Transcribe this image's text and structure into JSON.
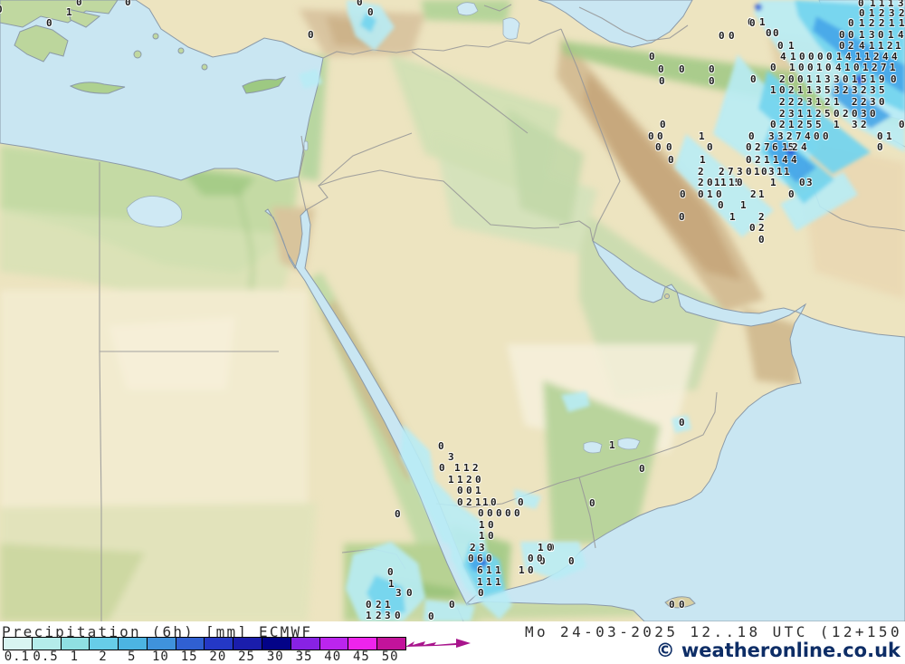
{
  "legend": {
    "title": "Precipitation (6h) [mm] ECMWF",
    "datetime": "Mo 24-03-2025 12..18 UTC (12+150",
    "copyright": "© weatheronline.co.uk",
    "scale": {
      "values": [
        "0.1",
        "0.5",
        "1",
        "2",
        "5",
        "10",
        "15",
        "20",
        "25",
        "30",
        "35",
        "40",
        "45",
        "50"
      ],
      "colors": [
        "#d8f4f1",
        "#b4ecea",
        "#8fe0e2",
        "#67cde8",
        "#4cb4e2",
        "#3f92dc",
        "#3060d2",
        "#2438c6",
        "#1a1dac",
        "#030388",
        "#8822e4",
        "#bb25ee",
        "#ee24ec",
        "#c3139b"
      ],
      "arrow_color": "#a8148c"
    }
  },
  "map": {
    "sea_color": "#c9e6f2",
    "land_color": "#eee6c3",
    "precip_values": [
      [
        88,
        3,
        "0"
      ],
      [
        142,
        3,
        "0"
      ],
      [
        0,
        11,
        "0"
      ],
      [
        77,
        14,
        "1"
      ],
      [
        55,
        26,
        "0"
      ],
      [
        398,
        3,
        "0"
      ],
      [
        410,
        14,
        "0"
      ],
      [
        344,
        39,
        "0"
      ],
      [
        830,
        25,
        "0"
      ],
      [
        843,
        25,
        "1"
      ],
      [
        850,
        37,
        "0"
      ],
      [
        858,
        37,
        "0"
      ],
      [
        798,
        40,
        "0"
      ],
      [
        809,
        40,
        "0"
      ],
      [
        832,
        26,
        "0"
      ],
      [
        721,
        63,
        "0"
      ],
      [
        731,
        77,
        "0"
      ],
      [
        754,
        77,
        "0"
      ],
      [
        787,
        77,
        "0"
      ],
      [
        732,
        90,
        "0"
      ],
      [
        787,
        90,
        "0"
      ],
      [
        952,
        4,
        "0"
      ],
      [
        965,
        4,
        "1"
      ],
      [
        975,
        4,
        "1"
      ],
      [
        985,
        4,
        "1"
      ],
      [
        996,
        4,
        "3"
      ],
      [
        953,
        15,
        "0"
      ],
      [
        964,
        15,
        "1"
      ],
      [
        975,
        15,
        "2"
      ],
      [
        986,
        15,
        "3"
      ],
      [
        997,
        15,
        "2"
      ],
      [
        941,
        26,
        "0"
      ],
      [
        953,
        26,
        "1"
      ],
      [
        964,
        26,
        "2"
      ],
      [
        975,
        26,
        "2"
      ],
      [
        986,
        26,
        "1"
      ],
      [
        997,
        26,
        "1"
      ],
      [
        931,
        39,
        "0"
      ],
      [
        941,
        39,
        "0"
      ],
      [
        953,
        39,
        "1"
      ],
      [
        964,
        39,
        "3"
      ],
      [
        974,
        39,
        "0"
      ],
      [
        985,
        39,
        "1"
      ],
      [
        996,
        39,
        "4"
      ],
      [
        931,
        51,
        "0"
      ],
      [
        941,
        51,
        "2"
      ],
      [
        953,
        51,
        "4"
      ],
      [
        964,
        51,
        "1"
      ],
      [
        974,
        51,
        "1"
      ],
      [
        984,
        51,
        "2"
      ],
      [
        993,
        51,
        "1"
      ],
      [
        863,
        51,
        "0"
      ],
      [
        875,
        51,
        "1"
      ],
      [
        866,
        63,
        "4"
      ],
      [
        877,
        63,
        "1"
      ],
      [
        887,
        63,
        "0"
      ],
      [
        897,
        63,
        "0"
      ],
      [
        907,
        63,
        "0"
      ],
      [
        917,
        63,
        "0"
      ],
      [
        928,
        63,
        "1"
      ],
      [
        938,
        63,
        "4"
      ],
      [
        949,
        63,
        "1"
      ],
      [
        959,
        63,
        "1"
      ],
      [
        969,
        63,
        "2"
      ],
      [
        979,
        63,
        "4"
      ],
      [
        989,
        63,
        "4"
      ],
      [
        855,
        75,
        "0"
      ],
      [
        876,
        75,
        "1"
      ],
      [
        886,
        75,
        "0"
      ],
      [
        896,
        75,
        "0"
      ],
      [
        906,
        75,
        "1"
      ],
      [
        916,
        75,
        "0"
      ],
      [
        927,
        75,
        "4"
      ],
      [
        937,
        75,
        "1"
      ],
      [
        947,
        75,
        "0"
      ],
      [
        957,
        75,
        "1"
      ],
      [
        967,
        75,
        "2"
      ],
      [
        977,
        75,
        "7"
      ],
      [
        987,
        75,
        "1"
      ],
      [
        833,
        88,
        "0"
      ],
      [
        865,
        88,
        "2"
      ],
      [
        875,
        88,
        "0"
      ],
      [
        885,
        88,
        "0"
      ],
      [
        895,
        88,
        "1"
      ],
      [
        905,
        88,
        "1"
      ],
      [
        915,
        88,
        "3"
      ],
      [
        925,
        88,
        "3"
      ],
      [
        935,
        88,
        "0"
      ],
      [
        945,
        88,
        "1"
      ],
      [
        955,
        88,
        "5"
      ],
      [
        965,
        88,
        "1"
      ],
      [
        975,
        88,
        "9"
      ],
      [
        988,
        88,
        "0"
      ],
      [
        855,
        100,
        "1"
      ],
      [
        865,
        100,
        "0"
      ],
      [
        875,
        100,
        "2"
      ],
      [
        885,
        100,
        "1"
      ],
      [
        895,
        100,
        "1"
      ],
      [
        905,
        100,
        "3"
      ],
      [
        915,
        100,
        "5"
      ],
      [
        925,
        100,
        "3"
      ],
      [
        935,
        100,
        "2"
      ],
      [
        945,
        100,
        "3"
      ],
      [
        955,
        100,
        "2"
      ],
      [
        965,
        100,
        "3"
      ],
      [
        975,
        100,
        "5"
      ],
      [
        865,
        113,
        "2"
      ],
      [
        875,
        113,
        "2"
      ],
      [
        885,
        113,
        "2"
      ],
      [
        895,
        113,
        "3"
      ],
      [
        905,
        113,
        "1"
      ],
      [
        915,
        113,
        "2"
      ],
      [
        925,
        113,
        "1"
      ],
      [
        945,
        113,
        "2"
      ],
      [
        955,
        113,
        "2"
      ],
      [
        965,
        113,
        "3"
      ],
      [
        975,
        113,
        "0"
      ],
      [
        865,
        126,
        "2"
      ],
      [
        875,
        126,
        "3"
      ],
      [
        885,
        126,
        "1"
      ],
      [
        895,
        126,
        "1"
      ],
      [
        905,
        126,
        "2"
      ],
      [
        915,
        126,
        "5"
      ],
      [
        925,
        126,
        "0"
      ],
      [
        935,
        126,
        "2"
      ],
      [
        945,
        126,
        "0"
      ],
      [
        955,
        126,
        "3"
      ],
      [
        965,
        126,
        "0"
      ],
      [
        733,
        138,
        "0"
      ],
      [
        855,
        138,
        "0"
      ],
      [
        865,
        138,
        "2"
      ],
      [
        875,
        138,
        "1"
      ],
      [
        885,
        138,
        "2"
      ],
      [
        895,
        138,
        "5"
      ],
      [
        905,
        138,
        "5"
      ],
      [
        925,
        138,
        "1"
      ],
      [
        945,
        138,
        "3"
      ],
      [
        955,
        138,
        "2"
      ],
      [
        997,
        138,
        "0"
      ],
      [
        720,
        151,
        "0"
      ],
      [
        730,
        151,
        "0"
      ],
      [
        776,
        151,
        "1"
      ],
      [
        831,
        151,
        "0"
      ],
      [
        853,
        151,
        "3"
      ],
      [
        863,
        151,
        "3"
      ],
      [
        873,
        151,
        "2"
      ],
      [
        883,
        151,
        "7"
      ],
      [
        893,
        151,
        "4"
      ],
      [
        903,
        151,
        "0"
      ],
      [
        913,
        151,
        "0"
      ],
      [
        973,
        151,
        "0"
      ],
      [
        983,
        151,
        "1"
      ],
      [
        728,
        163,
        "0"
      ],
      [
        740,
        163,
        "0"
      ],
      [
        785,
        163,
        "0"
      ],
      [
        828,
        163,
        "0"
      ],
      [
        838,
        163,
        "2"
      ],
      [
        848,
        163,
        "7"
      ],
      [
        857,
        163,
        "6"
      ],
      [
        868,
        163,
        "15"
      ],
      [
        879,
        163,
        "2"
      ],
      [
        889,
        163,
        "4"
      ],
      [
        973,
        163,
        "0"
      ],
      [
        742,
        177,
        "0"
      ],
      [
        777,
        177,
        "1"
      ],
      [
        828,
        177,
        "0"
      ],
      [
        838,
        177,
        "2"
      ],
      [
        848,
        177,
        "1"
      ],
      [
        858,
        177,
        "1"
      ],
      [
        868,
        177,
        "4"
      ],
      [
        878,
        177,
        "4"
      ],
      [
        775,
        190,
        "2"
      ],
      [
        798,
        190,
        "2"
      ],
      [
        808,
        190,
        "7"
      ],
      [
        818,
        190,
        "3"
      ],
      [
        828,
        190,
        "0"
      ],
      [
        837,
        190,
        "1"
      ],
      [
        845,
        190,
        "0"
      ],
      [
        853,
        190,
        "3"
      ],
      [
        862,
        190,
        "1"
      ],
      [
        870,
        190,
        "1"
      ],
      [
        775,
        202,
        "2"
      ],
      [
        785,
        202,
        "0"
      ],
      [
        793,
        202,
        "1"
      ],
      [
        800,
        202,
        "1"
      ],
      [
        809,
        202,
        "15"
      ],
      [
        818,
        202,
        "0"
      ],
      [
        855,
        202,
        "1"
      ],
      [
        887,
        202,
        "0"
      ],
      [
        895,
        202,
        "3"
      ],
      [
        755,
        215,
        "0"
      ],
      [
        775,
        215,
        "0"
      ],
      [
        785,
        215,
        "1"
      ],
      [
        795,
        215,
        "0"
      ],
      [
        833,
        215,
        "2"
      ],
      [
        842,
        215,
        "1"
      ],
      [
        875,
        215,
        "0"
      ],
      [
        797,
        227,
        "0"
      ],
      [
        822,
        227,
        "1"
      ],
      [
        754,
        240,
        "0"
      ],
      [
        810,
        240,
        "1"
      ],
      [
        842,
        240,
        "2"
      ],
      [
        832,
        252,
        "0"
      ],
      [
        842,
        252,
        "2"
      ],
      [
        842,
        265,
        "0"
      ],
      [
        754,
        467,
        "0"
      ],
      [
        677,
        492,
        "1"
      ],
      [
        710,
        518,
        "0"
      ],
      [
        655,
        556,
        "0"
      ],
      [
        610,
        605,
        "0"
      ],
      [
        600,
        620,
        "0"
      ],
      [
        632,
        620,
        "0"
      ],
      [
        743,
        668,
        "0"
      ],
      [
        754,
        668,
        "0"
      ],
      [
        488,
        493,
        "0"
      ],
      [
        499,
        505,
        "3"
      ],
      [
        489,
        517,
        "0"
      ],
      [
        506,
        517,
        "1"
      ],
      [
        516,
        517,
        "1"
      ],
      [
        526,
        517,
        "2"
      ],
      [
        499,
        530,
        "1"
      ],
      [
        509,
        530,
        "1"
      ],
      [
        519,
        530,
        "2"
      ],
      [
        529,
        530,
        "0"
      ],
      [
        509,
        542,
        "0"
      ],
      [
        519,
        542,
        "0"
      ],
      [
        529,
        542,
        "1"
      ],
      [
        509,
        555,
        "0"
      ],
      [
        519,
        555,
        "2"
      ],
      [
        529,
        555,
        "1"
      ],
      [
        537,
        555,
        "1"
      ],
      [
        546,
        555,
        "0"
      ],
      [
        576,
        555,
        "0"
      ],
      [
        532,
        567,
        "0"
      ],
      [
        542,
        567,
        "0"
      ],
      [
        552,
        567,
        "0"
      ],
      [
        562,
        567,
        "0"
      ],
      [
        572,
        567,
        "0"
      ],
      [
        440,
        568,
        "0"
      ],
      [
        533,
        580,
        "1"
      ],
      [
        543,
        580,
        "0"
      ],
      [
        533,
        592,
        "1"
      ],
      [
        543,
        592,
        "0"
      ],
      [
        523,
        605,
        "2"
      ],
      [
        533,
        605,
        "3"
      ],
      [
        598,
        605,
        "1"
      ],
      [
        608,
        605,
        "0"
      ],
      [
        521,
        617,
        "0"
      ],
      [
        531,
        617,
        "6"
      ],
      [
        541,
        617,
        "0"
      ],
      [
        587,
        617,
        "0"
      ],
      [
        597,
        617,
        "0"
      ],
      [
        531,
        630,
        "6"
      ],
      [
        541,
        630,
        "1"
      ],
      [
        551,
        630,
        "1"
      ],
      [
        577,
        630,
        "1"
      ],
      [
        587,
        630,
        "0"
      ],
      [
        531,
        643,
        "1"
      ],
      [
        541,
        643,
        "1"
      ],
      [
        551,
        643,
        "1"
      ],
      [
        532,
        655,
        "0"
      ],
      [
        432,
        632,
        "0"
      ],
      [
        433,
        645,
        "1"
      ],
      [
        441,
        655,
        "3"
      ],
      [
        453,
        655,
        "0"
      ],
      [
        408,
        668,
        "0"
      ],
      [
        419,
        668,
        "2"
      ],
      [
        429,
        668,
        "1"
      ],
      [
        500,
        668,
        "0"
      ],
      [
        408,
        680,
        "1"
      ],
      [
        419,
        680,
        "2"
      ],
      [
        429,
        680,
        "3"
      ],
      [
        440,
        680,
        "0"
      ],
      [
        477,
        681,
        "0"
      ]
    ]
  }
}
